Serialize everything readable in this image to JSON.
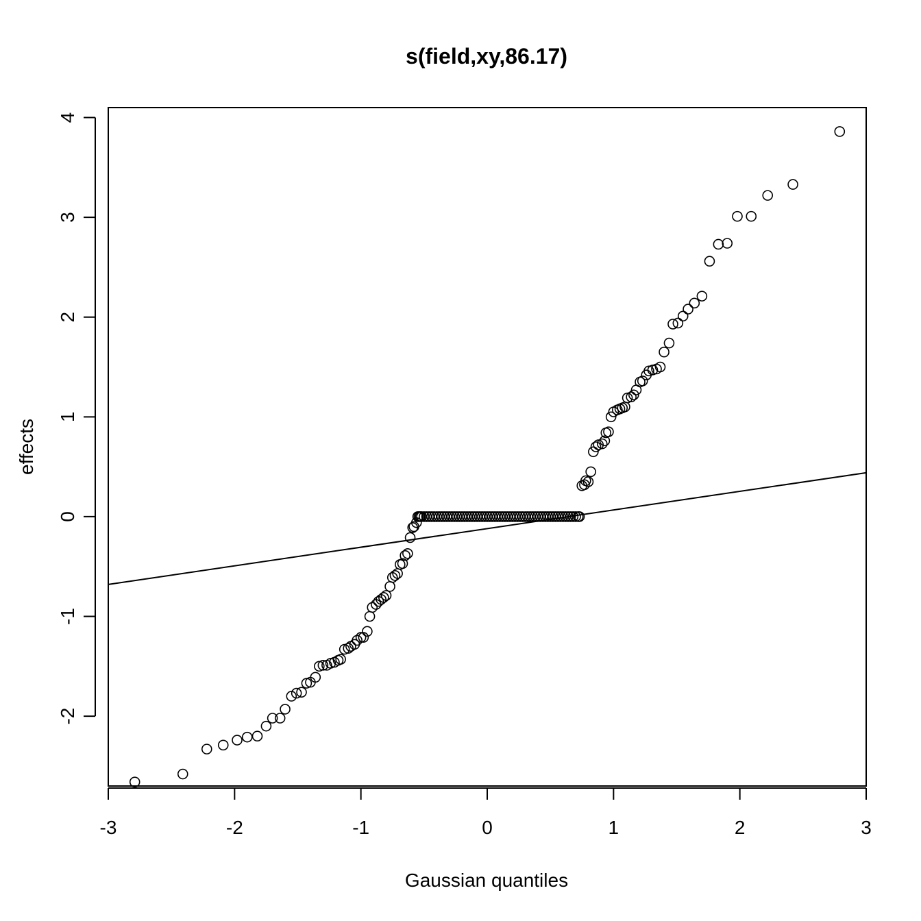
{
  "chart_data": {
    "type": "scatter",
    "title": "s(field,xy,86.17)",
    "xlabel": "Gaussian quantiles",
    "ylabel": "effects",
    "xlim": [
      -3.0,
      3.0
    ],
    "ylim": [
      -2.7,
      4.1
    ],
    "xticks": [
      -3,
      -2,
      -1,
      0,
      1,
      2,
      3
    ],
    "yticks": [
      -2,
      -1,
      0,
      1,
      2,
      3,
      4
    ],
    "xtick_labels": [
      "-3",
      "-2",
      "-1",
      "0",
      "1",
      "2",
      "3"
    ],
    "ytick_labels": [
      "-2",
      "-1",
      "0",
      "1",
      "2",
      "3",
      "4"
    ],
    "grid": false,
    "legend": "none",
    "marker": "open-circle",
    "reference_line": {
      "x": [
        -3.0,
        3.0
      ],
      "y": [
        -0.68,
        0.44
      ]
    },
    "points": [
      [
        -2.79,
        -2.66
      ],
      [
        -2.41,
        -2.58
      ],
      [
        -2.22,
        -2.33
      ],
      [
        -2.09,
        -2.29
      ],
      [
        -1.98,
        -2.24
      ],
      [
        -1.9,
        -2.21
      ],
      [
        -1.82,
        -2.2
      ],
      [
        -1.75,
        -2.1
      ],
      [
        -1.7,
        -2.02
      ],
      [
        -1.64,
        -2.02
      ],
      [
        -1.6,
        -1.93
      ],
      [
        -1.55,
        -1.8
      ],
      [
        -1.51,
        -1.77
      ],
      [
        -1.47,
        -1.76
      ],
      [
        -1.43,
        -1.67
      ],
      [
        -1.4,
        -1.66
      ],
      [
        -1.36,
        -1.61
      ],
      [
        -1.33,
        -1.5
      ],
      [
        -1.3,
        -1.49
      ],
      [
        -1.27,
        -1.49
      ],
      [
        -1.24,
        -1.47
      ],
      [
        -1.21,
        -1.46
      ],
      [
        -1.18,
        -1.44
      ],
      [
        -1.16,
        -1.43
      ],
      [
        -1.13,
        -1.33
      ],
      [
        -1.1,
        -1.32
      ],
      [
        -1.08,
        -1.3
      ],
      [
        -1.05,
        -1.28
      ],
      [
        -1.03,
        -1.24
      ],
      [
        -1.0,
        -1.21
      ],
      [
        -0.98,
        -1.21
      ],
      [
        -0.95,
        -1.15
      ],
      [
        -0.93,
        -1.0
      ],
      [
        -0.91,
        -0.91
      ],
      [
        -0.88,
        -0.88
      ],
      [
        -0.86,
        -0.85
      ],
      [
        -0.84,
        -0.83
      ],
      [
        -0.82,
        -0.81
      ],
      [
        -0.8,
        -0.79
      ],
      [
        -0.77,
        -0.7
      ],
      [
        -0.75,
        -0.61
      ],
      [
        -0.73,
        -0.59
      ],
      [
        -0.71,
        -0.57
      ],
      [
        -0.69,
        -0.48
      ],
      [
        -0.67,
        -0.47
      ],
      [
        -0.65,
        -0.39
      ],
      [
        -0.63,
        -0.37
      ],
      [
        -0.61,
        -0.21
      ],
      [
        -0.59,
        -0.11
      ],
      [
        -0.58,
        -0.1
      ],
      [
        -0.56,
        -0.06
      ],
      [
        -0.55,
        0.0
      ],
      [
        -0.54,
        0.0
      ],
      [
        -0.53,
        0.0
      ],
      [
        -0.52,
        0.0
      ],
      [
        -0.5,
        0.0
      ],
      [
        -0.48,
        0.0
      ],
      [
        -0.46,
        0.0
      ],
      [
        -0.44,
        0.0
      ],
      [
        -0.42,
        0.0
      ],
      [
        -0.4,
        0.0
      ],
      [
        -0.38,
        0.0
      ],
      [
        -0.36,
        0.0
      ],
      [
        -0.34,
        0.0
      ],
      [
        -0.32,
        0.0
      ],
      [
        -0.3,
        0.0
      ],
      [
        -0.28,
        0.0
      ],
      [
        -0.26,
        0.0
      ],
      [
        -0.24,
        0.0
      ],
      [
        -0.22,
        0.0
      ],
      [
        -0.2,
        0.0
      ],
      [
        -0.18,
        0.0
      ],
      [
        -0.16,
        0.0
      ],
      [
        -0.14,
        0.0
      ],
      [
        -0.12,
        0.0
      ],
      [
        -0.1,
        0.0
      ],
      [
        -0.08,
        0.0
      ],
      [
        -0.06,
        0.0
      ],
      [
        -0.04,
        0.0
      ],
      [
        -0.02,
        0.0
      ],
      [
        0.0,
        0.0
      ],
      [
        0.02,
        0.0
      ],
      [
        0.04,
        0.0
      ],
      [
        0.06,
        0.0
      ],
      [
        0.08,
        0.0
      ],
      [
        0.1,
        0.0
      ],
      [
        0.12,
        0.0
      ],
      [
        0.14,
        0.0
      ],
      [
        0.16,
        0.0
      ],
      [
        0.18,
        0.0
      ],
      [
        0.2,
        0.0
      ],
      [
        0.22,
        0.0
      ],
      [
        0.24,
        0.0
      ],
      [
        0.26,
        0.0
      ],
      [
        0.28,
        0.0
      ],
      [
        0.3,
        0.0
      ],
      [
        0.32,
        0.0
      ],
      [
        0.34,
        0.0
      ],
      [
        0.36,
        0.0
      ],
      [
        0.38,
        0.0
      ],
      [
        0.4,
        0.0
      ],
      [
        0.42,
        0.0
      ],
      [
        0.44,
        0.0
      ],
      [
        0.46,
        0.0
      ],
      [
        0.48,
        0.0
      ],
      [
        0.5,
        0.0
      ],
      [
        0.52,
        0.0
      ],
      [
        0.54,
        0.0
      ],
      [
        0.56,
        0.0
      ],
      [
        0.58,
        0.0
      ],
      [
        0.6,
        0.0
      ],
      [
        0.62,
        0.0
      ],
      [
        0.64,
        0.0
      ],
      [
        0.66,
        0.0
      ],
      [
        0.68,
        0.0
      ],
      [
        0.7,
        0.0
      ],
      [
        0.72,
        0.0
      ],
      [
        0.73,
        0.0
      ],
      [
        0.75,
        0.31
      ],
      [
        0.77,
        0.32
      ],
      [
        0.78,
        0.36
      ],
      [
        0.8,
        0.35
      ],
      [
        0.82,
        0.45
      ],
      [
        0.84,
        0.65
      ],
      [
        0.86,
        0.7
      ],
      [
        0.88,
        0.72
      ],
      [
        0.91,
        0.73
      ],
      [
        0.93,
        0.76
      ],
      [
        0.94,
        0.84
      ],
      [
        0.96,
        0.85
      ],
      [
        0.98,
        1.0
      ],
      [
        1.0,
        1.05
      ],
      [
        1.03,
        1.07
      ],
      [
        1.05,
        1.08
      ],
      [
        1.07,
        1.09
      ],
      [
        1.09,
        1.1
      ],
      [
        1.11,
        1.19
      ],
      [
        1.14,
        1.2
      ],
      [
        1.16,
        1.22
      ],
      [
        1.18,
        1.27
      ],
      [
        1.21,
        1.35
      ],
      [
        1.23,
        1.36
      ],
      [
        1.26,
        1.42
      ],
      [
        1.28,
        1.46
      ],
      [
        1.31,
        1.47
      ],
      [
        1.34,
        1.48
      ],
      [
        1.37,
        1.5
      ],
      [
        1.4,
        1.65
      ],
      [
        1.44,
        1.74
      ],
      [
        1.47,
        1.93
      ],
      [
        1.51,
        1.94
      ],
      [
        1.55,
        2.01
      ],
      [
        1.59,
        2.08
      ],
      [
        1.64,
        2.14
      ],
      [
        1.7,
        2.21
      ],
      [
        1.76,
        2.56
      ],
      [
        1.83,
        2.73
      ],
      [
        1.9,
        2.74
      ],
      [
        1.98,
        3.01
      ],
      [
        2.09,
        3.01
      ],
      [
        2.22,
        3.22
      ],
      [
        2.42,
        3.33
      ],
      [
        2.79,
        3.86
      ]
    ]
  }
}
